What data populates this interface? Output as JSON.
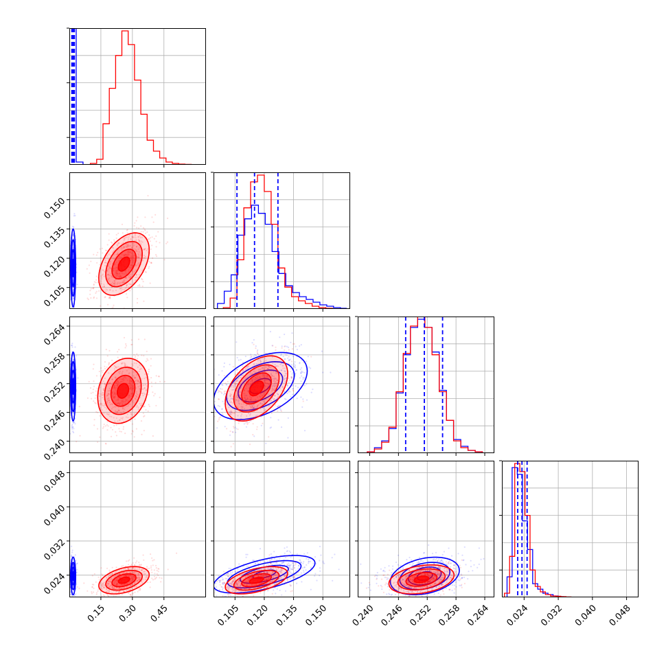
{
  "chart_data": {
    "type": "corner",
    "colors": {
      "series_1": "#0000ff",
      "series_2": "#ff0000"
    },
    "grid": true,
    "quantile_lines": {
      "series": "blue",
      "style": "dashed",
      "positions": [
        {
          "param": 0,
          "values": [
            0.012,
            0.018,
            0.024
          ]
        },
        {
          "param": 1,
          "values": [
            0.106,
            0.115,
            0.127
          ]
        },
        {
          "param": 2,
          "values": [
            0.2475,
            0.2514,
            0.2552
          ]
        },
        {
          "param": 3,
          "values": [
            0.0225,
            0.0235,
            0.0247
          ]
        }
      ]
    },
    "params": [
      {
        "range": [
          0.0,
          0.65
        ],
        "ticks": [
          0.15,
          0.3,
          0.45
        ],
        "tick_labels": [
          "0.15",
          "0.30",
          "0.45"
        ]
      },
      {
        "range": [
          0.094,
          0.164
        ],
        "ticks": [
          0.105,
          0.12,
          0.135,
          0.15
        ],
        "tick_labels": [
          "0.105",
          "0.120",
          "0.135",
          "0.150"
        ]
      },
      {
        "range": [
          0.2375,
          0.266
        ],
        "ticks": [
          0.24,
          0.246,
          0.252,
          0.258,
          0.264
        ],
        "tick_labels": [
          "0.240",
          "0.246",
          "0.252",
          "0.258",
          "0.264"
        ]
      },
      {
        "range": [
          0.0188,
          0.0508
        ],
        "ticks": [
          0.024,
          0.032,
          0.04,
          0.048
        ],
        "tick_labels": [
          "0.024",
          "0.032",
          "0.040",
          "0.048"
        ]
      }
    ],
    "hist_ylim": [
      0.0,
      1.0
    ],
    "histograms": [
      {
        "param": 0,
        "blue": {
          "edges": [
            0.0,
            0.0325,
            0.065
          ],
          "heights": [
            1.0,
            0.02
          ]
        },
        "red": {
          "edges": [
            0.1,
            0.13,
            0.16,
            0.19,
            0.22,
            0.25,
            0.28,
            0.31,
            0.34,
            0.37,
            0.4,
            0.43,
            0.46,
            0.49,
            0.52,
            0.55,
            0.58,
            0.61
          ],
          "heights": [
            0.01,
            0.04,
            0.3,
            0.56,
            0.8,
            0.98,
            0.88,
            0.62,
            0.37,
            0.18,
            0.1,
            0.05,
            0.02,
            0.01,
            0.005,
            0.003,
            0.0
          ]
        }
      },
      {
        "param": 1,
        "blue": {
          "edges": [
            0.096,
            0.0995,
            0.103,
            0.1065,
            0.11,
            0.1135,
            0.117,
            0.1205,
            0.124,
            0.1275,
            0.131,
            0.1345,
            0.138,
            0.1415,
            0.145,
            0.1485,
            0.152,
            0.1555,
            0.159,
            0.162
          ],
          "heights": [
            0.04,
            0.13,
            0.25,
            0.54,
            0.66,
            0.76,
            0.7,
            0.62,
            0.42,
            0.26,
            0.17,
            0.12,
            0.09,
            0.07,
            0.05,
            0.03,
            0.02,
            0.01,
            0.005
          ]
        },
        "red": {
          "edges": [
            0.099,
            0.1025,
            0.106,
            0.1095,
            0.113,
            0.1165,
            0.12,
            0.1235,
            0.127,
            0.1305,
            0.134,
            0.1375,
            0.141,
            0.1445,
            0.148,
            0.1515,
            0.155
          ],
          "heights": [
            0.01,
            0.08,
            0.36,
            0.74,
            0.93,
            0.98,
            0.86,
            0.62,
            0.3,
            0.16,
            0.09,
            0.06,
            0.04,
            0.02,
            0.01,
            0.005
          ]
        }
      },
      {
        "param": 2,
        "blue": {
          "edges": [
            0.2395,
            0.241,
            0.2425,
            0.244,
            0.2455,
            0.247,
            0.2485,
            0.25,
            0.2515,
            0.253,
            0.2545,
            0.256,
            0.2575,
            0.259,
            0.2605,
            0.262,
            0.2635
          ],
          "heights": [
            0.01,
            0.04,
            0.09,
            0.18,
            0.44,
            0.72,
            0.92,
            0.98,
            0.92,
            0.74,
            0.46,
            0.24,
            0.1,
            0.05,
            0.02,
            0.01
          ]
        },
        "red": {
          "edges": [
            0.2395,
            0.241,
            0.2425,
            0.244,
            0.2455,
            0.247,
            0.2485,
            0.25,
            0.2515,
            0.253,
            0.2545,
            0.256,
            0.2575,
            0.259,
            0.2605,
            0.262,
            0.2635
          ],
          "heights": [
            0.01,
            0.03,
            0.08,
            0.19,
            0.45,
            0.73,
            0.93,
            1.0,
            0.92,
            0.72,
            0.45,
            0.24,
            0.09,
            0.04,
            0.02,
            0.01
          ]
        }
      },
      {
        "param": 3,
        "blue": {
          "edges": [
            0.02,
            0.0212,
            0.0224,
            0.0236,
            0.0248,
            0.026,
            0.0272,
            0.0284,
            0.0296,
            0.0308,
            0.032,
            0.0332,
            0.0344
          ],
          "heights": [
            0.15,
            0.95,
            0.9,
            0.56,
            0.35,
            0.1,
            0.06,
            0.03,
            0.02,
            0.01,
            0.005,
            0.002
          ]
        },
        "red": {
          "edges": [
            0.0194,
            0.0206,
            0.0218,
            0.023,
            0.0242,
            0.0254,
            0.0266,
            0.0278,
            0.029,
            0.0302,
            0.0314,
            0.0326,
            0.0338,
            0.035,
            0.0362
          ],
          "heights": [
            0.03,
            0.3,
            0.98,
            0.92,
            0.6,
            0.2,
            0.08,
            0.04,
            0.02,
            0.01,
            0.008,
            0.005,
            0.003,
            0.001
          ]
        }
      }
    ],
    "scatter_2d": [
      {
        "x": 0,
        "y": 1,
        "blue": {
          "mean": [
            0.018,
            0.115
          ],
          "sd": [
            0.006,
            0.01
          ],
          "rho": 0.0,
          "n": 300
        },
        "red": {
          "mean": [
            0.26,
            0.117
          ],
          "sd": [
            0.06,
            0.008
          ],
          "rho": 0.45,
          "n": 650
        }
      },
      {
        "x": 0,
        "y": 2,
        "blue": {
          "mean": [
            0.018,
            0.2514
          ],
          "sd": [
            0.006,
            0.0036
          ],
          "rho": 0.0,
          "n": 300
        },
        "red": {
          "mean": [
            0.255,
            0.2505
          ],
          "sd": [
            0.06,
            0.0034
          ],
          "rho": 0.2,
          "n": 650
        }
      },
      {
        "x": 0,
        "y": 3,
        "blue": {
          "mean": [
            0.018,
            0.0238
          ],
          "sd": [
            0.006,
            0.0022
          ],
          "rho": 0.0,
          "n": 300
        },
        "red": {
          "mean": [
            0.26,
            0.0228
          ],
          "sd": [
            0.06,
            0.0016
          ],
          "rho": 0.4,
          "n": 650
        }
      },
      {
        "x": 1,
        "y": 2,
        "blue": {
          "mean": [
            0.118,
            0.2515
          ],
          "sd": [
            0.012,
            0.0035
          ],
          "rho": 0.45,
          "n": 500
        },
        "red": {
          "mean": [
            0.116,
            0.251
          ],
          "sd": [
            0.008,
            0.0034
          ],
          "rho": 0.45,
          "n": 500
        }
      },
      {
        "x": 1,
        "y": 3,
        "blue": {
          "mean": [
            0.12,
            0.0242
          ],
          "sd": [
            0.013,
            0.0022
          ],
          "rho": 0.6,
          "n": 500
        },
        "red": {
          "mean": [
            0.116,
            0.0228
          ],
          "sd": [
            0.008,
            0.0016
          ],
          "rho": 0.5,
          "n": 500
        }
      },
      {
        "x": 2,
        "y": 3,
        "blue": {
          "mean": [
            0.2515,
            0.0238
          ],
          "sd": [
            0.0036,
            0.0022
          ],
          "rho": 0.3,
          "n": 500
        },
        "red": {
          "mean": [
            0.2508,
            0.023
          ],
          "sd": [
            0.0034,
            0.0017
          ],
          "rho": 0.3,
          "n": 500
        }
      }
    ]
  }
}
